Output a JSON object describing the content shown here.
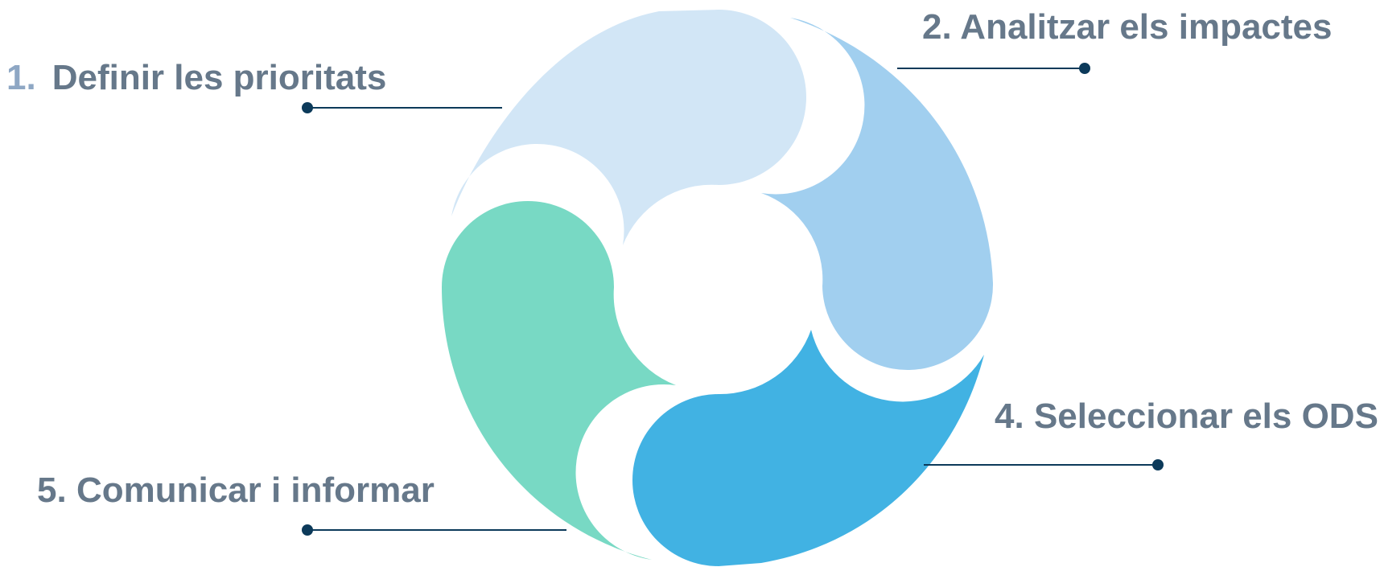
{
  "diagram": {
    "steps": [
      {
        "number": "1.",
        "text": "Definir les prioritats",
        "color": "#d2e6f6"
      },
      {
        "number": "2.",
        "text": "Analitzar els impactes",
        "color": "#a1cfef"
      },
      {
        "number": "4.",
        "text": "Seleccionar els ODS",
        "color": "#41b2e3"
      },
      {
        "number": "5.",
        "text": "Comunicar i informar",
        "color": "#78d9c4"
      }
    ],
    "label_color": "#66788a",
    "number_color": "#8ea7c4",
    "connector_color": "#0c3a5a"
  }
}
